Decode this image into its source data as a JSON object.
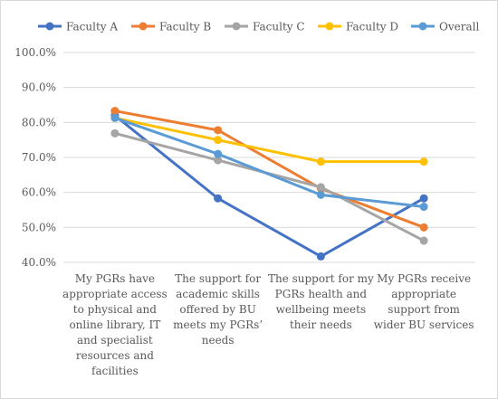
{
  "chart_data": {
    "type": "line",
    "title": "",
    "xlabel": "",
    "ylabel": "",
    "ylim": [
      40,
      100
    ],
    "y_ticks": [
      "40.0%",
      "50.0%",
      "60.0%",
      "70.0%",
      "80.0%",
      "90.0%",
      "100.0%"
    ],
    "y_tick_values": [
      40,
      50,
      60,
      70,
      80,
      90,
      100
    ],
    "grid": true,
    "legend_position": "top",
    "categories": [
      [
        "My PGRs have",
        "appropriate access",
        "to physical and",
        "online library, IT",
        "and specialist",
        "resources and",
        "facilities"
      ],
      [
        "The support for",
        "academic skills",
        "offered by BU",
        "meets my PGRs’",
        "needs"
      ],
      [
        "The support for my",
        "PGRs health and",
        "wellbeing meets",
        "their needs"
      ],
      [
        "My PGRs receive",
        "appropriate",
        "support from",
        "wider BU services"
      ]
    ],
    "series": [
      {
        "name": "Faculty A",
        "color": "#4472C4",
        "values": [
          82.0,
          58.3,
          41.7,
          58.3
        ]
      },
      {
        "name": "Faculty B",
        "color": "#ED7D31",
        "values": [
          83.3,
          77.8,
          61.1,
          50.0
        ]
      },
      {
        "name": "Faculty C",
        "color": "#A5A5A5",
        "values": [
          76.9,
          69.2,
          61.5,
          46.2
        ]
      },
      {
        "name": "Faculty D",
        "color": "#FFC000",
        "values": [
          81.3,
          75.0,
          68.8,
          68.8
        ]
      },
      {
        "name": "Overall",
        "color": "#5B9BD5",
        "values": [
          81.3,
          71.0,
          59.3,
          55.9
        ]
      }
    ]
  }
}
